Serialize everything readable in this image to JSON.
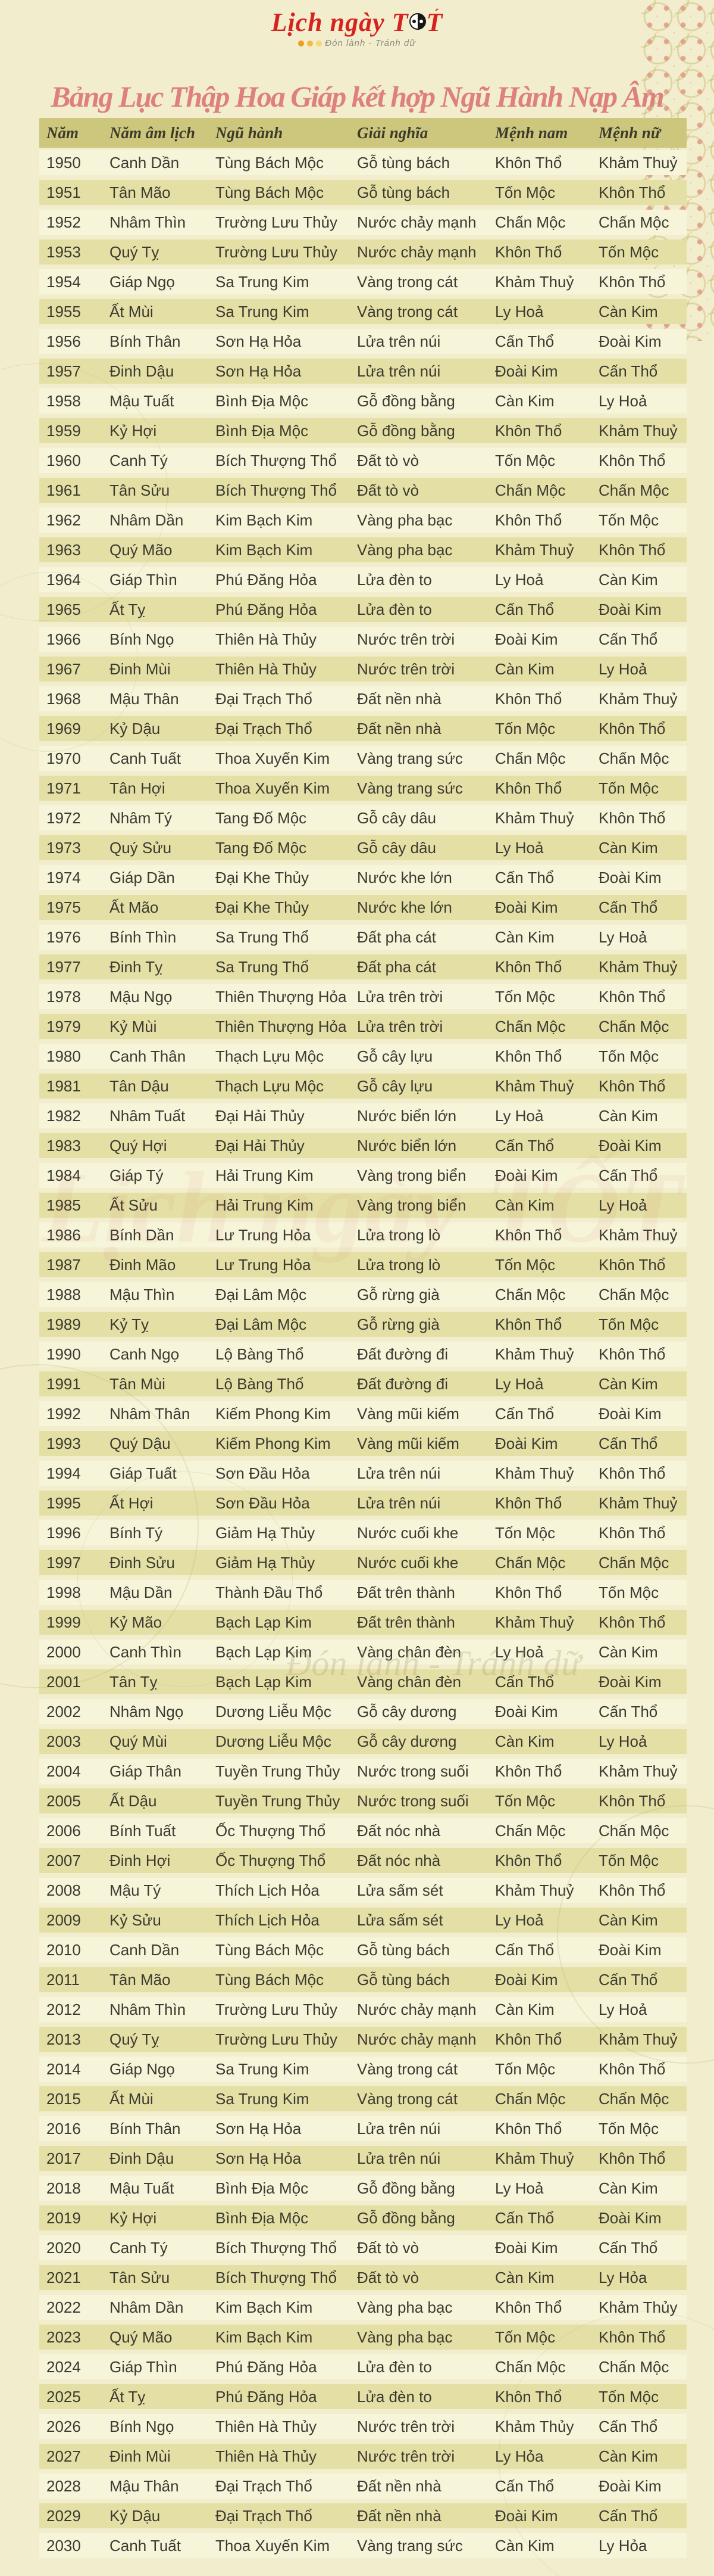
{
  "logo": {
    "brand_before": "Lịch ngày T",
    "brand_after": "T",
    "accent": "´",
    "tagline": "Đón lành - Tránh dữ"
  },
  "title": "Bảng Lục Thập Hoa Giáp kết hợp Ngũ Hành Nạp Âm",
  "watermark": {
    "brand": "Lịch ngày TỐT",
    "tagline": "Đón lành - Tránh dữ"
  },
  "colors": {
    "page_bg": "#f2eecd",
    "header_bg": "#ccc77d",
    "row_light": "#f6f4d9",
    "row_dark": "#e4e0a5",
    "title_pink": "#de8080",
    "logo_red": "#d7231f",
    "pattern_pink": "#df968a",
    "text": "#3d3a31"
  },
  "table": {
    "columns": [
      "Năm",
      "Năm âm lịch",
      "Ngũ hành",
      "Giải nghĩa",
      "Mệnh nam",
      "Mệnh nữ"
    ],
    "rows": [
      [
        "1950",
        "Canh Dần",
        "Tùng Bách Mộc",
        "Gỗ tùng bách",
        "Khôn Thổ",
        "Khảm Thuỷ"
      ],
      [
        "1951",
        "Tân Mão",
        "Tùng Bách Mộc",
        "Gỗ tùng bách",
        "Tốn Mộc",
        "Khôn Thổ"
      ],
      [
        "1952",
        "Nhâm Thìn",
        "Trường Lưu Thủy",
        "Nước chảy mạnh",
        "Chấn Mộc",
        "Chấn Mộc"
      ],
      [
        "1953",
        "Quý Tỵ",
        "Trường Lưu Thủy",
        "Nước chảy mạnh",
        "Khôn Thổ",
        "Tốn Mộc"
      ],
      [
        "1954",
        "Giáp Ngọ",
        "Sa Trung Kim",
        "Vàng trong cát",
        "Khảm Thuỷ",
        "Khôn Thổ"
      ],
      [
        "1955",
        "Ất Mùi",
        "Sa Trung Kim",
        "Vàng trong cát",
        "Ly Hoả",
        "Càn Kim"
      ],
      [
        "1956",
        "Bính Thân",
        "Sơn Hạ Hỏa",
        "Lửa trên núi",
        "Cấn Thổ",
        "Đoài Kim"
      ],
      [
        "1957",
        "Đinh Dậu",
        "Sơn Hạ Hỏa",
        "Lửa trên núi",
        "Đoài Kim",
        "Cấn Thổ"
      ],
      [
        "1958",
        "Mậu Tuất",
        "Bình Địa Mộc",
        "Gỗ đồng bằng",
        "Càn Kim",
        "Ly Hoả"
      ],
      [
        "1959",
        "Kỷ Hợi",
        "Bình Địa Mộc",
        "Gỗ đồng bằng",
        "Khôn Thổ",
        "Khảm Thuỷ"
      ],
      [
        "1960",
        "Canh Tý",
        "Bích Thượng Thổ",
        "Đất tò vò",
        "Tốn Mộc",
        "Khôn Thổ"
      ],
      [
        "1961",
        "Tân Sửu",
        "Bích Thượng Thổ",
        "Đất tò vò",
        "Chấn Mộc",
        "Chấn Mộc"
      ],
      [
        "1962",
        "Nhâm Dần",
        "Kim Bạch Kim",
        "Vàng pha bạc",
        "Khôn Thổ",
        "Tốn Mộc"
      ],
      [
        "1963",
        "Quý Mão",
        "Kim Bạch Kim",
        "Vàng pha bạc",
        "Khảm Thuỷ",
        "Khôn Thổ"
      ],
      [
        "1964",
        "Giáp Thìn",
        "Phú Đăng Hỏa",
        "Lửa đèn to",
        "Ly Hoả",
        "Càn Kim"
      ],
      [
        "1965",
        "Ất Tỵ",
        "Phú Đăng Hỏa",
        "Lửa đèn to",
        "Cấn Thổ",
        "Đoài Kim"
      ],
      [
        "1966",
        "Bính Ngọ",
        "Thiên Hà Thủy",
        "Nước trên trời",
        "Đoài Kim",
        "Cấn Thổ"
      ],
      [
        "1967",
        "Đinh Mùi",
        "Thiên Hà Thủy",
        "Nước trên trời",
        "Càn Kim",
        "Ly Hoả"
      ],
      [
        "1968",
        "Mậu Thân",
        "Đại Trạch Thổ",
        "Đất nền nhà",
        "Khôn Thổ",
        "Khảm Thuỷ"
      ],
      [
        "1969",
        "Kỷ Dậu",
        "Đại Trạch Thổ",
        "Đất nền nhà",
        "Tốn Mộc",
        "Khôn Thổ"
      ],
      [
        "1970",
        "Canh Tuất",
        "Thoa Xuyến Kim",
        "Vàng trang sức",
        "Chấn Mộc",
        "Chấn Mộc"
      ],
      [
        "1971",
        "Tân Hợi",
        "Thoa Xuyến Kim",
        "Vàng trang sức",
        "Khôn Thổ",
        "Tốn Mộc"
      ],
      [
        "1972",
        "Nhâm Tý",
        "Tang Đố Mộc",
        "Gỗ cây dâu",
        "Khảm Thuỷ",
        "Khôn Thổ"
      ],
      [
        "1973",
        "Quý Sửu",
        "Tang Đố Mộc",
        "Gỗ cây dâu",
        "Ly Hoả",
        "Càn Kim"
      ],
      [
        "1974",
        "Giáp Dần",
        "Đại Khe Thủy",
        "Nước khe lớn",
        "Cấn Thổ",
        "Đoài Kim"
      ],
      [
        "1975",
        "Ất Mão",
        "Đại Khe Thủy",
        "Nước khe lớn",
        "Đoài Kim",
        "Cấn Thổ"
      ],
      [
        "1976",
        "Bính Thìn",
        "Sa Trung Thổ",
        "Đất pha cát",
        "Càn Kim",
        "Ly Hoả"
      ],
      [
        "1977",
        "Đinh Tỵ",
        "Sa Trung Thổ",
        "Đất pha cát",
        "Khôn Thổ",
        "Khảm Thuỷ"
      ],
      [
        "1978",
        "Mậu Ngọ",
        "Thiên Thượng Hỏa",
        "Lửa trên trời",
        "Tốn Mộc",
        "Khôn Thổ"
      ],
      [
        "1979",
        "Kỷ Mùi",
        "Thiên Thượng Hỏa",
        "Lửa trên trời",
        "Chấn Mộc",
        "Chấn Mộc"
      ],
      [
        "1980",
        "Canh Thân",
        "Thạch Lựu Mộc",
        "Gỗ cây lựu",
        "Khôn Thổ",
        "Tốn Mộc"
      ],
      [
        "1981",
        "Tân Dậu",
        "Thạch Lựu Mộc",
        "Gỗ cây lựu",
        "Khảm Thuỷ",
        "Khôn Thổ"
      ],
      [
        "1982",
        "Nhâm Tuất",
        "Đại Hải Thủy",
        "Nước biển lớn",
        "Ly Hoả",
        "Càn Kim"
      ],
      [
        "1983",
        "Quý Hợi",
        "Đại Hải Thủy",
        "Nước biển lớn",
        "Cấn Thổ",
        "Đoài Kim"
      ],
      [
        "1984",
        "Giáp Tý",
        "Hải Trung Kim",
        "Vàng trong biển",
        "Đoài Kim",
        "Cấn Thổ"
      ],
      [
        "1985",
        "Ất Sửu",
        "Hải Trung Kim",
        "Vàng trong biển",
        "Càn Kim",
        "Ly Hoả"
      ],
      [
        "1986",
        "Bính Dần",
        "Lư Trung Hỏa",
        "Lửa trong lò",
        "Khôn Thổ",
        "Khảm Thuỷ"
      ],
      [
        "1987",
        "Đinh Mão",
        "Lư Trung Hỏa",
        "Lửa trong lò",
        "Tốn Mộc",
        "Khôn Thổ"
      ],
      [
        "1988",
        "Mậu Thìn",
        "Đại Lâm Mộc",
        "Gỗ rừng già",
        "Chấn Mộc",
        "Chấn Mộc"
      ],
      [
        "1989",
        "Kỷ Tỵ",
        "Đại Lâm Mộc",
        "Gỗ rừng già",
        "Khôn Thổ",
        "Tốn Mộc"
      ],
      [
        "1990",
        "Canh Ngọ",
        "Lộ Bàng Thổ",
        "Đất đường đi",
        "Khảm Thuỷ",
        "Khôn Thổ"
      ],
      [
        "1991",
        "Tân Mùi",
        "Lộ Bàng Thổ",
        "Đất đường đi",
        "Ly Hoả",
        "Càn Kim"
      ],
      [
        "1992",
        "Nhâm Thân",
        "Kiếm Phong Kim",
        "Vàng mũi kiếm",
        "Cấn Thổ",
        "Đoài Kim"
      ],
      [
        "1993",
        "Quý Dậu",
        "Kiếm Phong Kim",
        "Vàng mũi kiếm",
        "Đoài Kim",
        "Cấn Thổ"
      ],
      [
        "1994",
        "Giáp Tuất",
        "Sơn Đầu Hỏa",
        "Lửa trên núi",
        "Khảm Thuỷ",
        "Khôn Thổ"
      ],
      [
        "1995",
        "Ất Hợi",
        "Sơn Đầu Hỏa",
        "Lửa trên núi",
        "Khôn Thổ",
        "Khảm Thuỷ"
      ],
      [
        "1996",
        "Bính Tý",
        "Giảm Hạ Thủy",
        "Nước cuối khe",
        "Tốn Mộc",
        "Khôn Thổ"
      ],
      [
        "1997",
        "Đinh Sửu",
        "Giảm Hạ Thủy",
        "Nước cuối khe",
        "Chấn Mộc",
        "Chấn Mộc"
      ],
      [
        "1998",
        "Mậu Dần",
        "Thành Đầu Thổ",
        "Đất trên thành",
        "Khôn Thổ",
        "Tốn Mộc"
      ],
      [
        "1999",
        "Kỷ Mão",
        "Bạch Lạp Kim",
        "Đất trên thành",
        "Khảm Thuỷ",
        "Khôn Thổ"
      ],
      [
        "2000",
        "Canh Thìn",
        "Bạch Lạp Kim",
        "Vàng chân đèn",
        "Ly Hoả",
        "Càn Kim"
      ],
      [
        "2001",
        "Tân Tỵ",
        "Bạch Lạp Kim",
        "Vàng chân đèn",
        "Cấn Thổ",
        "Đoài Kim"
      ],
      [
        "2002",
        "Nhâm Ngọ",
        "Dương Liễu Mộc",
        "Gỗ cây dương",
        "Đoài Kim",
        "Cấn Thổ"
      ],
      [
        "2003",
        "Quý Mùi",
        "Dương Liễu Mộc",
        "Gỗ cây dương",
        "Càn Kim",
        "Ly Hoả"
      ],
      [
        "2004",
        "Giáp Thân",
        "Tuyền Trung Thủy",
        "Nước trong suối",
        "Khôn Thổ",
        "Khảm Thuỷ"
      ],
      [
        "2005",
        "Ất Dậu",
        "Tuyền Trung Thủy",
        "Nước trong suối",
        "Tốn Mộc",
        "Khôn Thổ"
      ],
      [
        "2006",
        "Bính Tuất",
        "Ốc Thượng Thổ",
        "Đất nóc nhà",
        "Chấn Mộc",
        "Chấn Mộc"
      ],
      [
        "2007",
        "Đinh Hợi",
        "Ốc Thượng Thổ",
        "Đất nóc nhà",
        "Khôn Thổ",
        "Tốn Mộc"
      ],
      [
        "2008",
        "Mậu Tý",
        "Thích Lịch Hỏa",
        "Lửa sấm sét",
        "Khảm Thuỷ",
        "Khôn Thổ"
      ],
      [
        "2009",
        "Kỷ Sửu",
        "Thích Lịch Hỏa",
        "Lửa sấm sét",
        "Ly Hoả",
        "Càn Kim"
      ],
      [
        "2010",
        "Canh Dần",
        "Tùng Bách Mộc",
        "Gỗ tùng bách",
        "Cấn Thổ",
        "Đoài Kim"
      ],
      [
        "2011",
        "Tân Mão",
        "Tùng Bách Mộc",
        "Gỗ tùng bách",
        "Đoài Kim",
        "Cấn Thổ"
      ],
      [
        "2012",
        "Nhâm Thìn",
        "Trường Lưu Thủy",
        "Nước chảy mạnh",
        "Càn Kim",
        "Ly Hoả"
      ],
      [
        "2013",
        "Quý Tỵ",
        "Trường Lưu Thủy",
        "Nước chảy mạnh",
        "Khôn Thổ",
        "Khảm Thuỷ"
      ],
      [
        "2014",
        "Giáp Ngọ",
        "Sa Trung Kim",
        "Vàng trong cát",
        "Tốn Mộc",
        "Khôn Thổ"
      ],
      [
        "2015",
        "Ất Mùi",
        "Sa Trung Kim",
        "Vàng trong cát",
        "Chấn Mộc",
        "Chấn Mộc"
      ],
      [
        "2016",
        "Bính Thân",
        "Sơn Hạ Hỏa",
        "Lửa trên núi",
        "Khôn Thổ",
        "Tốn Mộc"
      ],
      [
        "2017",
        "Đinh Dậu",
        "Sơn Hạ Hỏa",
        "Lửa trên núi",
        "Khảm Thuỷ",
        "Khôn Thổ"
      ],
      [
        "2018",
        "Mậu Tuất",
        "Bình Địa Mộc",
        "Gỗ đồng bằng",
        "Ly Hoả",
        "Càn Kim"
      ],
      [
        "2019",
        "Kỷ Hợi",
        "Bình Địa Mộc",
        "Gỗ đồng bằng",
        "Cấn Thổ",
        "Đoài Kim"
      ],
      [
        "2020",
        "Canh Tý",
        "Bích Thượng Thổ",
        "Đất tò vò",
        "Đoài Kim",
        "Cấn Thổ"
      ],
      [
        "2021",
        "Tân Sửu",
        "Bích Thượng Thổ",
        "Đất tò vò",
        "Càn Kim",
        "Ly Hỏa"
      ],
      [
        "2022",
        "Nhâm Dần",
        "Kim Bạch Kim",
        "Vàng pha bạc",
        "Khôn Thổ",
        "Khảm Thủy"
      ],
      [
        "2023",
        "Quý Mão",
        "Kim Bạch Kim",
        "Vàng pha bạc",
        "Tốn Mộc",
        "Khôn Thổ"
      ],
      [
        "2024",
        "Giáp Thìn",
        "Phú Đăng Hỏa",
        "Lửa đèn to",
        "Chấn Mộc",
        "Chấn Mộc"
      ],
      [
        "2025",
        "Ất Tỵ",
        "Phú Đăng Hỏa",
        "Lửa đèn to",
        "Khôn Thổ",
        "Tốn Mộc"
      ],
      [
        "2026",
        "Bính Ngọ",
        "Thiên Hà Thủy",
        "Nước trên trời",
        "Khảm Thủy",
        "Cấn Thổ"
      ],
      [
        "2027",
        "Đinh Mùi",
        "Thiên Hà Thủy",
        "Nước trên trời",
        "Ly Hỏa",
        "Càn Kim"
      ],
      [
        "2028",
        "Mậu Thân",
        "Đại Trạch Thổ",
        "Đất nền nhà",
        "Cấn Thổ",
        "Đoài Kim"
      ],
      [
        "2029",
        "Kỷ Dậu",
        "Đại Trạch Thổ",
        "Đất nền nhà",
        "Đoài Kim",
        "Cấn Thổ"
      ],
      [
        "2030",
        "Canh Tuất",
        "Thoa Xuyến Kim",
        "Vàng trang sức",
        "Càn Kim",
        "Ly Hỏa"
      ]
    ]
  }
}
